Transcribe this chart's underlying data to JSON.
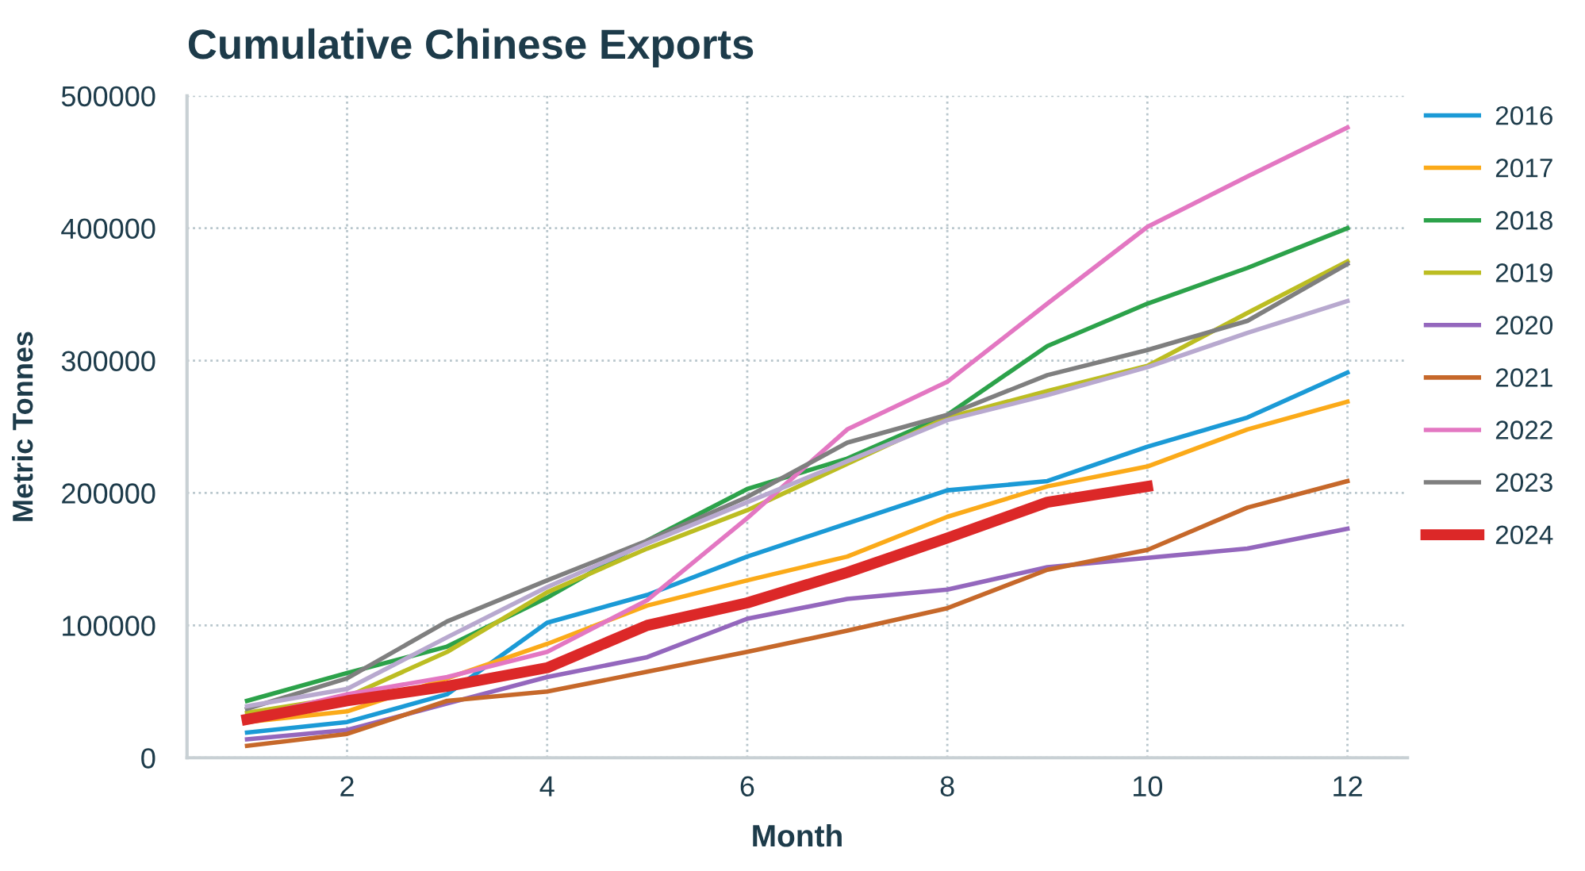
{
  "chart_data": {
    "type": "line",
    "title": "Cumulative Chinese Exports",
    "xlabel": "Month",
    "ylabel": "Metric Tonnes",
    "x": [
      1,
      2,
      3,
      4,
      5,
      6,
      7,
      8,
      9,
      10,
      11,
      12
    ],
    "xlim": [
      0.4,
      12.6
    ],
    "xticks": [
      2,
      4,
      6,
      8,
      10,
      12
    ],
    "ylim": [
      0,
      500000
    ],
    "yticks": [
      0,
      100000,
      200000,
      300000,
      400000,
      500000
    ],
    "grid": true,
    "legend": "right",
    "marker": "none",
    "line_style": "solid",
    "series": [
      {
        "name": "2016",
        "color": "#1b9ad6",
        "values": [
          19000,
          27000,
          48000,
          102000,
          123000,
          152000,
          177000,
          202000,
          209000,
          235000,
          257000,
          291000
        ]
      },
      {
        "name": "2017",
        "color": "#fbaa19",
        "values": [
          27000,
          35000,
          60000,
          86000,
          115000,
          134000,
          152000,
          182000,
          205000,
          220000,
          248000,
          269000
        ]
      },
      {
        "name": "2018",
        "color": "#2ca24a",
        "values": [
          43000,
          64000,
          84000,
          121000,
          164000,
          203000,
          226000,
          259000,
          311000,
          343000,
          370000,
          400000
        ]
      },
      {
        "name": "2019",
        "color": "#bcbd22",
        "values": [
          34000,
          46000,
          80000,
          125000,
          158000,
          187000,
          222000,
          257000,
          277000,
          296000,
          336000,
          375000
        ]
      },
      {
        "name": "2020",
        "color": "#9467bd",
        "values": [
          14000,
          21000,
          41000,
          61000,
          76000,
          105000,
          120000,
          127000,
          144000,
          151000,
          158000,
          173000
        ]
      },
      {
        "name": "2021",
        "color": "#c6682a",
        "values": [
          9000,
          18000,
          43000,
          50000,
          65000,
          80000,
          96000,
          113000,
          142000,
          157000,
          189000,
          209000
        ]
      },
      {
        "name": "2022",
        "color": "#e377c2",
        "values": [
          30000,
          48000,
          61000,
          80000,
          119000,
          181000,
          248000,
          284000,
          343000,
          401000,
          439000,
          476000
        ]
      },
      {
        "name": "2023",
        "color": "#7f7f7f",
        "values": [
          37000,
          60000,
          103000,
          134000,
          164000,
          197000,
          238000,
          259000,
          289000,
          308000,
          330000,
          373000
        ]
      },
      {
        "color": "#b8a9cf",
        "values": [
          39000,
          52000,
          91000,
          129000,
          162000,
          193000,
          224000,
          255000,
          274000,
          295000,
          321000,
          345000
        ]
      },
      {
        "name": "2024",
        "color": "#dc2828",
        "values": [
          29000,
          43000,
          54000,
          68000,
          100000,
          117000,
          140000,
          166000,
          193000,
          205000,
          null,
          null
        ]
      }
    ]
  }
}
